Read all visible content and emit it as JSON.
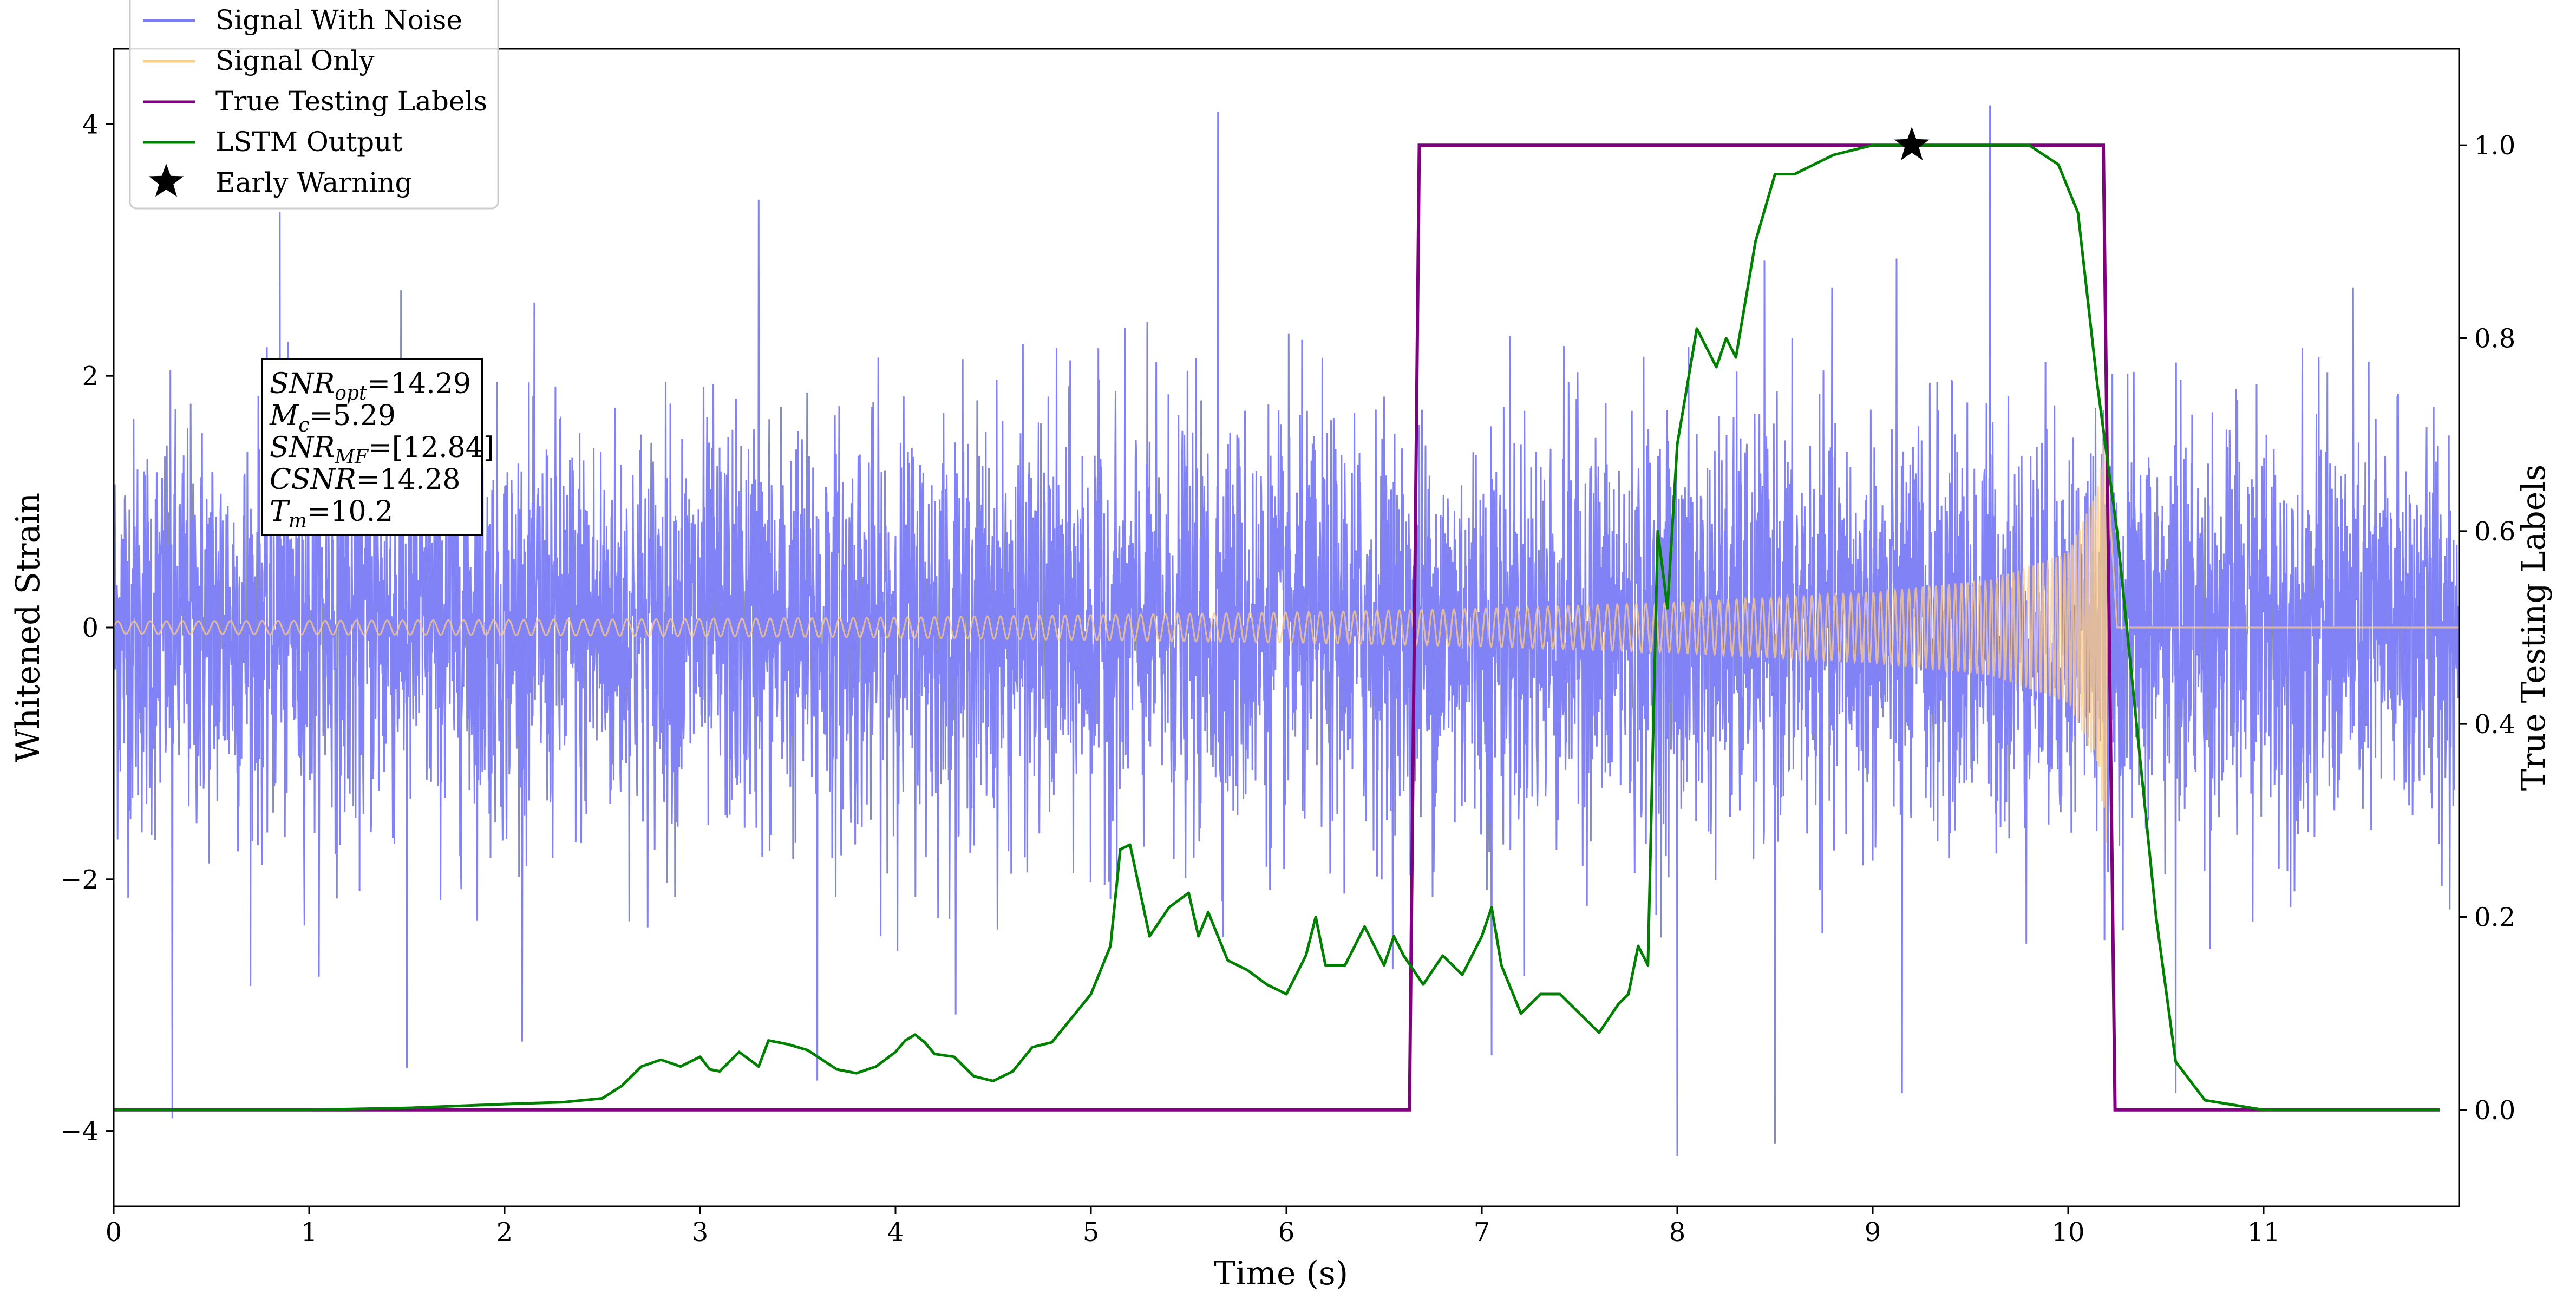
{
  "chart_data": {
    "type": "line",
    "xlabel": "Time (s)",
    "ylabel_left": "Whitened Strain",
    "ylabel_right": "True Testing Labels",
    "xlim": [
      0,
      12
    ],
    "ylim_left": [
      -4.6,
      4.6
    ],
    "ylim_right": [
      -0.1,
      1.1
    ],
    "x_ticks": [
      0,
      1,
      2,
      3,
      4,
      5,
      6,
      7,
      8,
      9,
      10,
      11
    ],
    "x_tick_labels": [
      "0",
      "1",
      "2",
      "3",
      "4",
      "5",
      "6",
      "7",
      "8",
      "9",
      "10",
      "11"
    ],
    "y_left_ticks": [
      -4,
      -2,
      0,
      2,
      4
    ],
    "y_left_tick_labels": [
      "−4",
      "−2",
      "0",
      "2",
      "4"
    ],
    "y_right_ticks": [
      0.0,
      0.2,
      0.4,
      0.6,
      0.8,
      1.0
    ],
    "y_right_tick_labels": [
      "0.0",
      "0.2",
      "0.4",
      "0.6",
      "0.8",
      "1.0"
    ],
    "legend": {
      "location": "upper-left",
      "entries": [
        {
          "label": "Signal With Noise",
          "color": "#7b7bf7",
          "marker": "line"
        },
        {
          "label": "Signal Only",
          "color": "#ffcc80",
          "marker": "line"
        },
        {
          "label": "True Testing Labels",
          "color": "#800080",
          "marker": "line"
        },
        {
          "label": "LSTM Output",
          "color": "#008000",
          "marker": "line"
        },
        {
          "label": "Early Warning",
          "color": "#000000",
          "marker": "star"
        }
      ]
    },
    "annotation_box": {
      "lines": [
        {
          "base": "SNR",
          "sub": "opt",
          "value": "=14.29"
        },
        {
          "base": "M",
          "sub": "c",
          "value": "=5.29"
        },
        {
          "base": "SNR",
          "sub": "MF",
          "value": "=[12.84]"
        },
        {
          "base": "CSNR",
          "sub": "",
          "value": "=14.28"
        },
        {
          "base": "T",
          "sub": "m",
          "value": "=10.2"
        }
      ]
    },
    "series": [
      {
        "name": "Signal With Noise",
        "axis": "left",
        "color": "#7b7bf7",
        "kind": "noise",
        "x_range": [
          0,
          12
        ],
        "typical_band": [
          -1.8,
          1.8
        ],
        "peak_values": [
          {
            "x": 0.3,
            "y": -3.9
          },
          {
            "x": 0.85,
            "y": 3.3
          },
          {
            "x": 1.5,
            "y": -3.5
          },
          {
            "x": 3.3,
            "y": 3.4
          },
          {
            "x": 3.6,
            "y": -3.6
          },
          {
            "x": 5.65,
            "y": 4.1
          },
          {
            "x": 7.05,
            "y": -3.4
          },
          {
            "x": 8.0,
            "y": -4.2
          },
          {
            "x": 8.5,
            "y": -4.1
          },
          {
            "x": 9.15,
            "y": -3.7
          },
          {
            "x": 9.6,
            "y": 4.15
          },
          {
            "x": 10.55,
            "y": -3.7
          }
        ]
      },
      {
        "name": "Signal Only",
        "axis": "left",
        "color": "#ffcc80",
        "kind": "chirp",
        "x_range": [
          0,
          10.2
        ],
        "amplitude_envelope": [
          {
            "x": 0.0,
            "a": 0.05
          },
          {
            "x": 2.0,
            "a": 0.06
          },
          {
            "x": 4.0,
            "a": 0.08
          },
          {
            "x": 6.0,
            "a": 0.12
          },
          {
            "x": 7.0,
            "a": 0.15
          },
          {
            "x": 8.0,
            "a": 0.2
          },
          {
            "x": 9.0,
            "a": 0.28
          },
          {
            "x": 9.6,
            "a": 0.38
          },
          {
            "x": 10.0,
            "a": 0.6
          },
          {
            "x": 10.15,
            "a": 1.1
          },
          {
            "x": 10.2,
            "a": 1.8
          }
        ]
      },
      {
        "name": "True Testing Labels",
        "axis": "right",
        "color": "#800080",
        "x": [
          0,
          6.63,
          6.68,
          10.18,
          10.24,
          11.9
        ],
        "y": [
          0,
          0,
          1,
          1,
          0,
          0
        ]
      },
      {
        "name": "LSTM Output",
        "axis": "right",
        "color": "#008000",
        "x": [
          0,
          1.0,
          1.5,
          2.0,
          2.3,
          2.5,
          2.6,
          2.7,
          2.8,
          2.9,
          3.0,
          3.05,
          3.1,
          3.2,
          3.3,
          3.35,
          3.45,
          3.55,
          3.7,
          3.8,
          3.9,
          4.0,
          4.05,
          4.1,
          4.15,
          4.2,
          4.3,
          4.4,
          4.5,
          4.6,
          4.7,
          4.8,
          4.9,
          5.0,
          5.1,
          5.15,
          5.2,
          5.3,
          5.4,
          5.5,
          5.55,
          5.6,
          5.7,
          5.8,
          5.9,
          6.0,
          6.1,
          6.15,
          6.2,
          6.3,
          6.4,
          6.5,
          6.55,
          6.6,
          6.7,
          6.8,
          6.9,
          7.0,
          7.05,
          7.1,
          7.2,
          7.3,
          7.4,
          7.5,
          7.6,
          7.7,
          7.75,
          7.8,
          7.85,
          7.9,
          7.95,
          8.0,
          8.05,
          8.1,
          8.2,
          8.25,
          8.3,
          8.4,
          8.5,
          8.6,
          8.7,
          8.8,
          9.0,
          9.2,
          9.5,
          9.8,
          9.95,
          10.05,
          10.15,
          10.25,
          10.35,
          10.45,
          10.55,
          10.7,
          11.0,
          11.5,
          11.9
        ],
        "y": [
          0.0,
          0.0,
          0.002,
          0.006,
          0.008,
          0.012,
          0.025,
          0.045,
          0.052,
          0.045,
          0.055,
          0.042,
          0.04,
          0.06,
          0.045,
          0.072,
          0.068,
          0.062,
          0.042,
          0.038,
          0.045,
          0.06,
          0.072,
          0.078,
          0.07,
          0.058,
          0.055,
          0.035,
          0.03,
          0.04,
          0.065,
          0.07,
          0.095,
          0.12,
          0.17,
          0.27,
          0.275,
          0.18,
          0.21,
          0.225,
          0.18,
          0.205,
          0.155,
          0.145,
          0.13,
          0.12,
          0.16,
          0.2,
          0.15,
          0.15,
          0.19,
          0.15,
          0.18,
          0.16,
          0.13,
          0.16,
          0.14,
          0.18,
          0.21,
          0.15,
          0.1,
          0.12,
          0.12,
          0.1,
          0.08,
          0.11,
          0.12,
          0.17,
          0.15,
          0.6,
          0.52,
          0.69,
          0.75,
          0.81,
          0.77,
          0.8,
          0.78,
          0.9,
          0.97,
          0.97,
          0.98,
          0.99,
          1.0,
          1.0,
          1.0,
          1.0,
          0.98,
          0.93,
          0.75,
          0.6,
          0.4,
          0.2,
          0.05,
          0.01,
          0.0,
          0.0,
          0.0
        ]
      }
    ],
    "early_warning": {
      "x": 9.2,
      "y": 1.0,
      "axis": "right"
    }
  }
}
